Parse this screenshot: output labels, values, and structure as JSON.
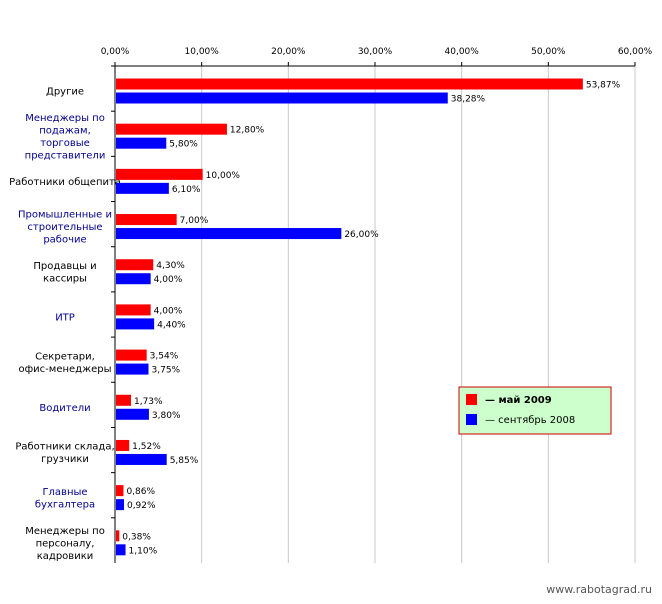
{
  "chart_data": {
    "type": "bar",
    "orientation": "horizontal",
    "xlim": [
      0,
      60
    ],
    "x_ticks": [
      "0,00%",
      "10,00%",
      "20,00%",
      "30,00%",
      "40,00%",
      "50,00%",
      "60,00%"
    ],
    "x_tick_values": [
      0,
      10,
      20,
      30,
      40,
      50,
      60
    ],
    "grid": true,
    "legend_position": "right",
    "categories": [
      "Другие",
      "Менеджеры по подажам, торговые представители",
      "Работники общепита",
      "Промышленные и строительные рабочие",
      "Продавцы и кассиры",
      "ИТР",
      "Секретари, офис-менеджеры",
      "Водители",
      "Работники склада, грузчики",
      "Главные бухгалтера",
      "Менеджеры по персоналу, кадровики"
    ],
    "category_lines": [
      [
        "Другие"
      ],
      [
        "Менеджеры по",
        "подажам,",
        "торговые",
        "представители"
      ],
      [
        "Работники общепита"
      ],
      [
        "Промышленные и",
        "строительные",
        "рабочие"
      ],
      [
        "Продавцы и",
        "кассиры"
      ],
      [
        "ИТР"
      ],
      [
        "Секретари,",
        "офис-менеджеры"
      ],
      [
        "Водители"
      ],
      [
        "Работники склада,",
        "грузчики"
      ],
      [
        "Главные",
        "бухгалтера"
      ],
      [
        "Менеджеры по",
        "персоналу,",
        "кадровики"
      ]
    ],
    "category_link_colors": [
      "#000000",
      "#00008b",
      "#000000",
      "#00008b",
      "#000000",
      "#00008b",
      "#000000",
      "#00008b",
      "#000000",
      "#00008b",
      "#000000"
    ],
    "series": [
      {
        "name": "— май 2009",
        "color": "#ff0000",
        "values": [
          53.87,
          12.8,
          10.0,
          7.0,
          4.3,
          4.0,
          3.54,
          1.73,
          1.52,
          0.86,
          0.38
        ],
        "labels": [
          "53,87%",
          "12,80%",
          "10,00%",
          "7,00%",
          "4,30%",
          "4,00%",
          "3,54%",
          "1,73%",
          "1,52%",
          "0,86%",
          "0,38%"
        ]
      },
      {
        "name": "— сентябрь 2008",
        "color": "#0000ff",
        "values": [
          38.28,
          5.8,
          6.1,
          26.0,
          4.0,
          4.4,
          3.75,
          3.8,
          5.85,
          0.92,
          1.1
        ],
        "labels": [
          "38,28%",
          "5,80%",
          "6,10%",
          "26,00%",
          "4,00%",
          "4,40%",
          "3,75%",
          "3,80%",
          "5,85%",
          "0,92%",
          "1,10%"
        ]
      }
    ]
  },
  "legend": {
    "background": "#ccffcc",
    "border": "#cc0000"
  },
  "watermark": "www.rabotagrad.ru"
}
